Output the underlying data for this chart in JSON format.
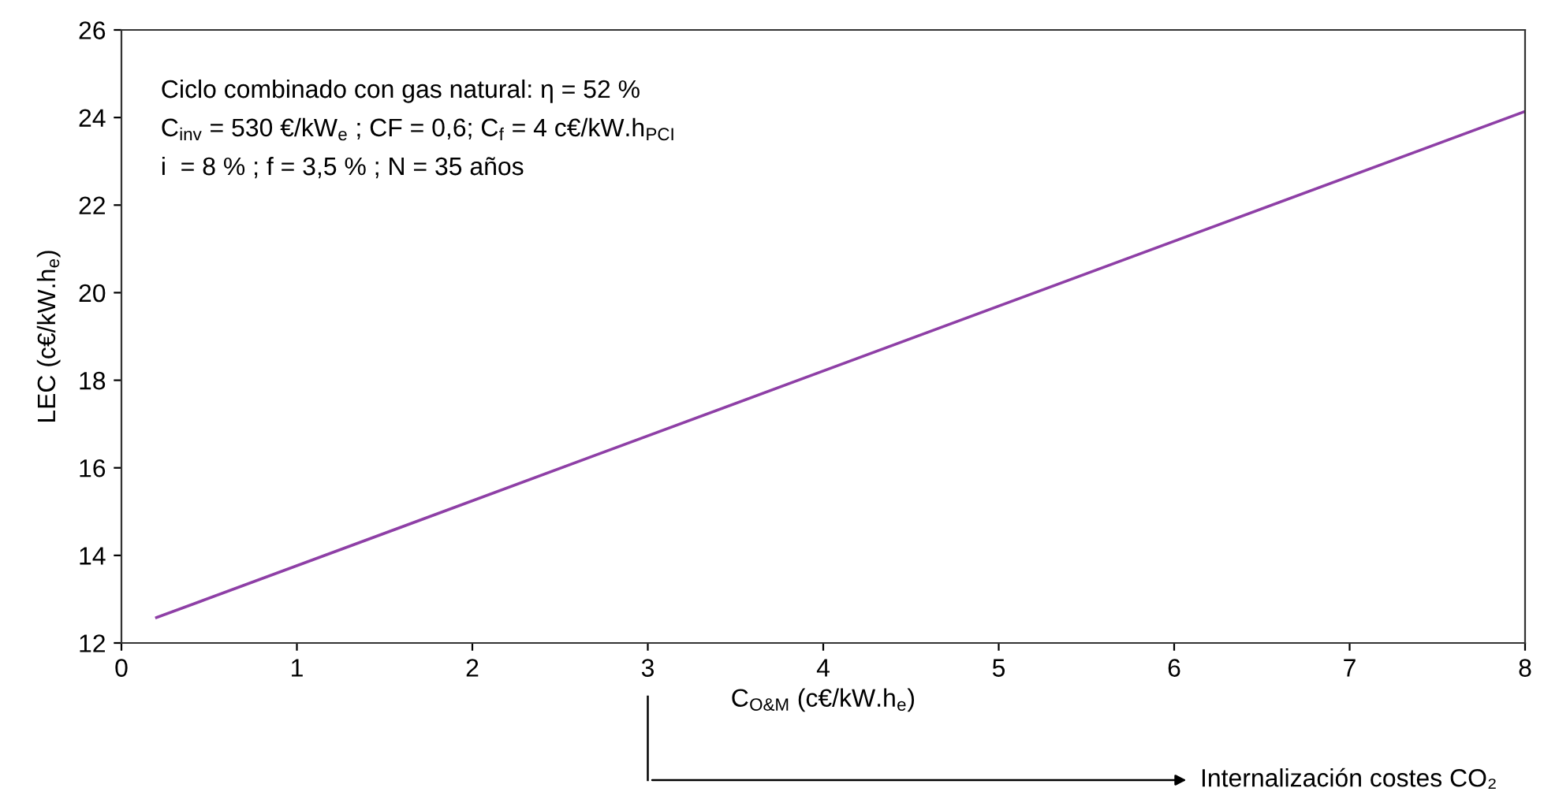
{
  "chart_data": {
    "type": "line",
    "xlabel": "C$_{O&M}$ (c€/kW.h$_{e}$)",
    "ylabel": "LEC (c€/kW.h$_{e}$)",
    "x": [
      0.2,
      8
    ],
    "series": [
      {
        "color": "#8e3fa6",
        "values": [
          12.58,
          24.14
        ]
      }
    ],
    "xlim": [
      0,
      8
    ],
    "xticks": [
      0,
      1,
      2,
      3,
      4,
      5,
      6,
      7,
      8
    ],
    "ylim": [
      12,
      26
    ],
    "yticks": [
      12,
      14,
      16,
      18,
      20,
      22,
      24,
      26
    ],
    "grid": false,
    "marker": "none",
    "line_style": "solid",
    "annotations": [
      "Ciclo combinado con gas natural: η = 52 %",
      "C$_{inv}$ = 530 €/kW$_{e}$ ; CF = 0,6; C$_{f}$ = 4 c€/kW.h$_{PCI}$",
      "i  = 8 % ; f = 3,5 % ; N = 35 años",
      "Internalización costes CO₂"
    ]
  }
}
